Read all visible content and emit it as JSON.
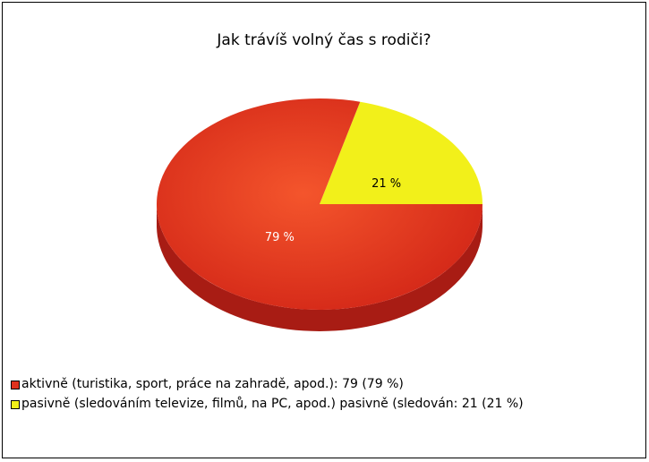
{
  "chart_data": {
    "type": "pie",
    "title": "Jak trávíš volný čas s rodiči?",
    "categories": [
      "aktivně (turistika, sport, práce na zahradě, apod.): 79 (79 %)",
      "pasivně (sledováním televize, filmů, na PC, apod.) pasivně (sledován: 21 (21 %)"
    ],
    "values": [
      79,
      21
    ],
    "value_labels": [
      "79 %",
      "21 %"
    ],
    "colors": [
      "#e0321e",
      "#f2f01a"
    ],
    "side_colors": [
      "#a81c14",
      "#b8b410"
    ],
    "label_colors": [
      "#ffffff",
      "#000000"
    ],
    "legend": "bottom-left"
  }
}
